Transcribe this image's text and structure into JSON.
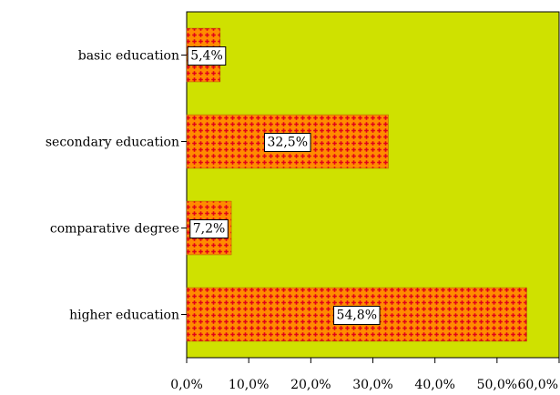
{
  "chart_data": {
    "type": "bar",
    "orientation": "horizontal",
    "title": "",
    "xlabel": "",
    "ylabel": "",
    "categories": [
      "basic education",
      "secondary education",
      "comparative degree",
      "higher education"
    ],
    "values": [
      5.4,
      32.5,
      7.2,
      54.8
    ],
    "value_labels": [
      "5,4%",
      "32,5%",
      "7,2%",
      "54,8%"
    ],
    "xlim": [
      0,
      60
    ],
    "x_ticks": [
      "0,0%",
      "10,0%",
      "20,0%",
      "30,0%",
      "40,0%",
      "50,0%",
      "60,0%"
    ],
    "grid": false,
    "legend": "none",
    "colors": {
      "plot_background": "#cfe100",
      "bar_fill": "#ff8c00",
      "bar_pattern": "#e0001a",
      "axis": "#000000",
      "label_box": "#ffffff"
    },
    "bar_pattern": "cross-dot"
  }
}
